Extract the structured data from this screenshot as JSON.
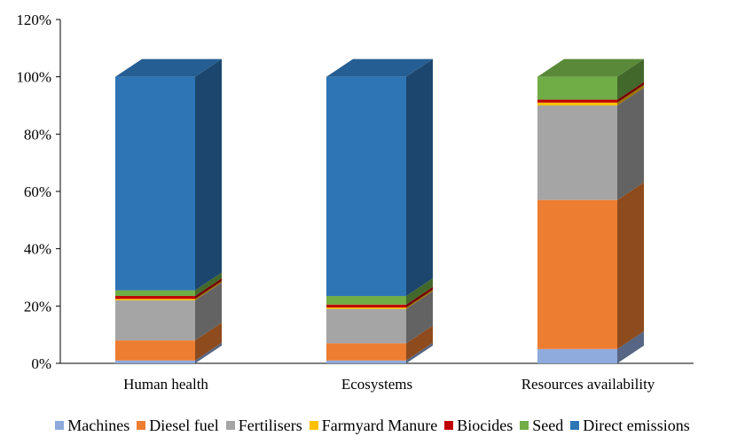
{
  "chart_data": {
    "type": "bar",
    "stacked": true,
    "style": "3d",
    "categories": [
      "Human health",
      "Ecosystems",
      "Resources availability"
    ],
    "yticks": [
      "0%",
      "20%",
      "40%",
      "60%",
      "80%",
      "100%",
      "120%"
    ],
    "ylim": [
      0,
      120
    ],
    "grid": false,
    "legend_position": "bottom",
    "series": [
      {
        "name": "Machines",
        "color": "#8faadc",
        "values": [
          1,
          1,
          5
        ]
      },
      {
        "name": "Diesel fuel",
        "color": "#ed7d31",
        "values": [
          7,
          6,
          52
        ]
      },
      {
        "name": "Fertilisers",
        "color": "#a5a5a5",
        "values": [
          14,
          12,
          33
        ]
      },
      {
        "name": "Farmyard Manure",
        "color": "#ffc000",
        "values": [
          0.5,
          0.5,
          1
        ]
      },
      {
        "name": "Biocides",
        "color": "#c00000",
        "values": [
          1,
          1,
          1
        ]
      },
      {
        "name": "Seed",
        "color": "#70ad47",
        "values": [
          2,
          3,
          8
        ]
      },
      {
        "name": "Direct emissions",
        "color": "#2e75b6",
        "values": [
          74.5,
          76.5,
          0
        ]
      }
    ]
  }
}
